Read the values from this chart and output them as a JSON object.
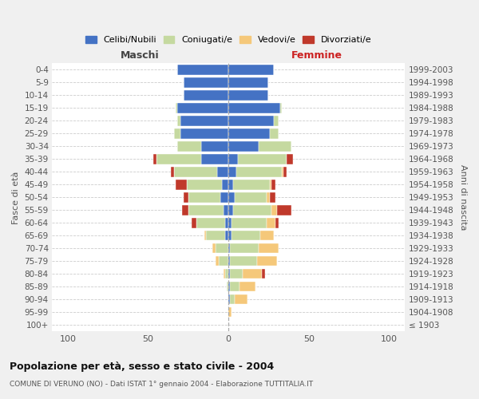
{
  "age_groups": [
    "100+",
    "95-99",
    "90-94",
    "85-89",
    "80-84",
    "75-79",
    "70-74",
    "65-69",
    "60-64",
    "55-59",
    "50-54",
    "45-49",
    "40-44",
    "35-39",
    "30-34",
    "25-29",
    "20-24",
    "15-19",
    "10-14",
    "5-9",
    "0-4"
  ],
  "birth_years": [
    "≤ 1903",
    "1904-1908",
    "1909-1913",
    "1914-1918",
    "1919-1923",
    "1924-1928",
    "1929-1933",
    "1934-1938",
    "1939-1943",
    "1944-1948",
    "1949-1953",
    "1954-1958",
    "1959-1963",
    "1964-1968",
    "1969-1973",
    "1974-1978",
    "1979-1983",
    "1984-1988",
    "1989-1993",
    "1994-1998",
    "1999-2003"
  ],
  "colors": {
    "celibi": "#4472c4",
    "coniugati": "#c5d9a0",
    "vedovi": "#f5c87a",
    "divorziati": "#c0392b"
  },
  "maschi": {
    "celibi": [
      0,
      0,
      0,
      0,
      0,
      0,
      0,
      2,
      2,
      3,
      5,
      4,
      7,
      17,
      17,
      30,
      30,
      32,
      28,
      28,
      32
    ],
    "coniugati": [
      0,
      0,
      0,
      1,
      2,
      6,
      8,
      12,
      18,
      22,
      20,
      22,
      27,
      28,
      15,
      4,
      2,
      1,
      0,
      0,
      0
    ],
    "vedovi": [
      0,
      0,
      0,
      0,
      1,
      2,
      2,
      1,
      0,
      0,
      0,
      0,
      0,
      0,
      0,
      0,
      0,
      0,
      0,
      0,
      0
    ],
    "divorziati": [
      0,
      0,
      0,
      0,
      0,
      0,
      0,
      0,
      3,
      4,
      3,
      7,
      2,
      2,
      0,
      0,
      0,
      0,
      0,
      0,
      0
    ]
  },
  "femmine": {
    "nubili": [
      0,
      0,
      1,
      1,
      1,
      1,
      1,
      2,
      2,
      3,
      4,
      3,
      5,
      6,
      19,
      26,
      28,
      32,
      25,
      25,
      28
    ],
    "coniugate": [
      0,
      0,
      3,
      6,
      8,
      17,
      18,
      18,
      22,
      24,
      20,
      23,
      28,
      30,
      20,
      5,
      3,
      1,
      0,
      0,
      0
    ],
    "vedove": [
      0,
      2,
      8,
      10,
      12,
      12,
      12,
      8,
      5,
      3,
      2,
      1,
      1,
      0,
      0,
      0,
      0,
      0,
      0,
      0,
      0
    ],
    "divorziate": [
      0,
      0,
      0,
      0,
      2,
      0,
      0,
      0,
      2,
      9,
      3,
      2,
      2,
      4,
      0,
      0,
      0,
      0,
      0,
      0,
      0
    ]
  },
  "title": "Popolazione per età, sesso e stato civile - 2004",
  "subtitle": "COMUNE DI VERUNO (NO) - Dati ISTAT 1° gennaio 2004 - Elaborazione TUTTITALIA.IT",
  "label_maschi": "Maschi",
  "label_femmine": "Femmine",
  "ylabel_left": "Fasce di età",
  "ylabel_right": "Anni di nascita",
  "xlim": 110,
  "bg_color": "#f0f0f0",
  "plot_bg": "#ffffff",
  "grid_color": "#cccccc",
  "legend_labels": [
    "Celibi/Nubili",
    "Coniugati/e",
    "Vedovi/e",
    "Divorziati/e"
  ]
}
